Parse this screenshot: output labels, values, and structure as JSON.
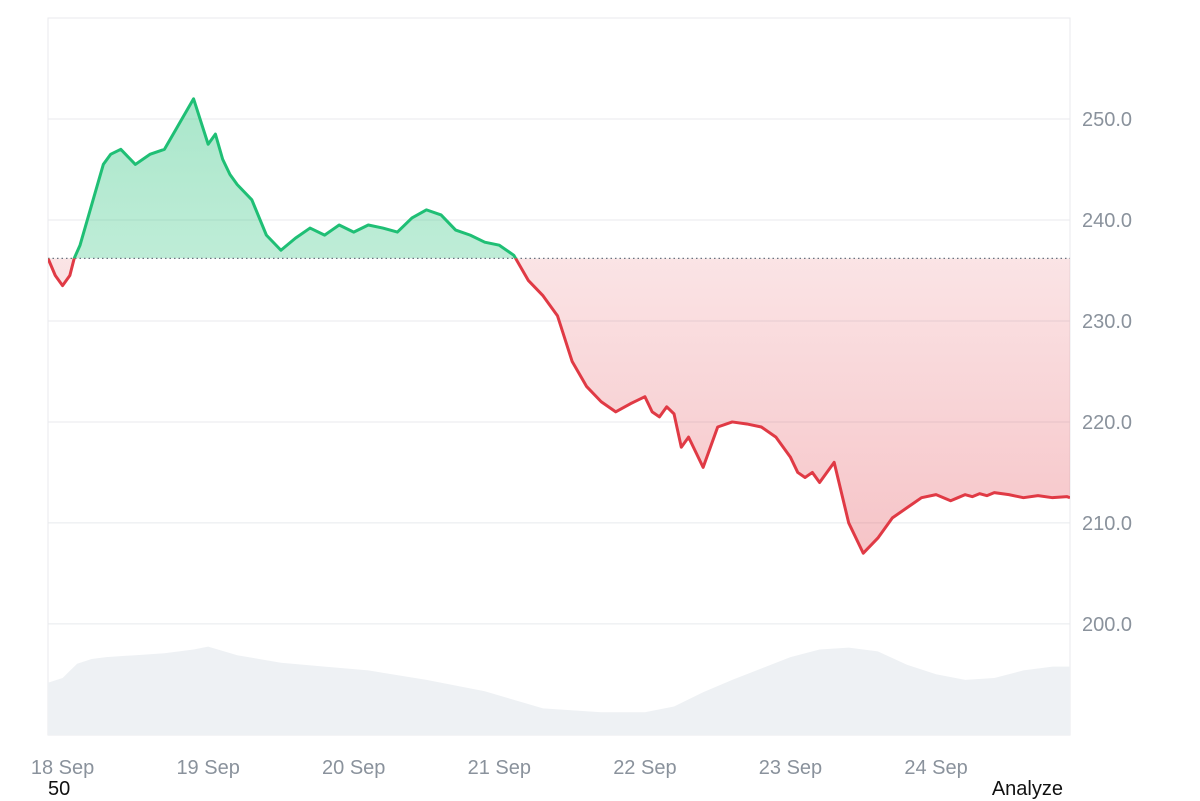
{
  "chart_data": {
    "type": "area",
    "baseline": 236.2,
    "ylim": [
      189,
      260
    ],
    "y_ticks": [
      200.0,
      210.0,
      220.0,
      230.0,
      240.0,
      250.0
    ],
    "y_tick_labels": [
      "200.0",
      "210.0",
      "220.0",
      "230.0",
      "240.0",
      "250.0"
    ],
    "x_tick_labels": [
      "18 Sep",
      "19 Sep",
      "20 Sep",
      "21 Sep",
      "22 Sep",
      "23 Sep",
      "24 Sep"
    ],
    "xlim": [
      -0.1,
      6.92
    ],
    "colors": {
      "up": "#1fbf75",
      "down": "#e03a45",
      "volume": "#eef1f4",
      "grid": "#e8eaed",
      "baseline": "#6b7280"
    },
    "price": {
      "x": [
        -0.1,
        -0.05,
        0.0,
        0.05,
        0.08,
        0.12,
        0.18,
        0.22,
        0.28,
        0.33,
        0.4,
        0.5,
        0.6,
        0.7,
        0.8,
        0.9,
        1.0,
        1.05,
        1.1,
        1.15,
        1.2,
        1.3,
        1.4,
        1.5,
        1.6,
        1.7,
        1.8,
        1.85,
        1.9,
        2.0,
        2.1,
        2.2,
        2.3,
        2.4,
        2.5,
        2.6,
        2.7,
        2.8,
        2.9,
        3.0,
        3.1,
        3.2,
        3.3,
        3.4,
        3.5,
        3.6,
        3.7,
        3.8,
        3.9,
        4.0,
        4.05,
        4.1,
        4.15,
        4.2,
        4.25,
        4.3,
        4.35,
        4.4,
        4.45,
        4.5,
        4.6,
        4.7,
        4.8,
        4.9,
        5.0,
        5.05,
        5.1,
        5.15,
        5.2,
        5.3,
        5.4,
        5.5,
        5.6,
        5.7,
        5.8,
        5.85,
        5.9,
        6.0,
        6.1,
        6.15,
        6.2,
        6.25,
        6.3,
        6.35,
        6.4,
        6.5,
        6.6,
        6.7,
        6.8,
        6.9,
        6.92
      ],
      "y": [
        236.2,
        234.5,
        233.5,
        234.5,
        236.2,
        237.5,
        240.5,
        242.5,
        245.5,
        246.5,
        247.0,
        245.5,
        246.5,
        247.0,
        249.5,
        252.0,
        247.5,
        248.5,
        246.0,
        244.5,
        243.5,
        242.0,
        238.5,
        237.0,
        238.2,
        239.2,
        238.5,
        239.0,
        239.5,
        238.8,
        239.5,
        239.2,
        238.8,
        240.2,
        241.0,
        240.5,
        239.0,
        238.5,
        237.8,
        237.5,
        236.5,
        234.0,
        232.5,
        230.5,
        226.0,
        223.5,
        222.0,
        221.0,
        221.8,
        222.5,
        221.0,
        220.5,
        221.5,
        220.8,
        217.5,
        218.5,
        217.0,
        215.5,
        217.5,
        219.5,
        220.0,
        219.8,
        219.5,
        218.5,
        216.5,
        215.0,
        214.5,
        215.0,
        214.0,
        216.0,
        210.0,
        207.0,
        208.5,
        210.5,
        211.5,
        212.0,
        212.5,
        212.8,
        212.2,
        212.5,
        212.8,
        212.6,
        212.9,
        212.7,
        213.0,
        212.8,
        212.5,
        212.7,
        212.5,
        212.6,
        212.5
      ]
    },
    "volume": {
      "x": [
        -0.1,
        0.0,
        0.1,
        0.2,
        0.3,
        0.5,
        0.7,
        0.9,
        1.0,
        1.2,
        1.5,
        1.8,
        2.1,
        2.5,
        2.9,
        3.3,
        3.7,
        4.0,
        4.2,
        4.4,
        4.6,
        4.8,
        5.0,
        5.2,
        5.4,
        5.6,
        5.8,
        6.0,
        6.2,
        6.4,
        6.6,
        6.8,
        6.92
      ],
      "level": [
        0.55,
        0.6,
        0.75,
        0.8,
        0.82,
        0.84,
        0.86,
        0.9,
        0.93,
        0.84,
        0.76,
        0.72,
        0.68,
        0.58,
        0.46,
        0.28,
        0.24,
        0.24,
        0.3,
        0.45,
        0.58,
        0.7,
        0.82,
        0.9,
        0.92,
        0.88,
        0.74,
        0.64,
        0.58,
        0.6,
        0.68,
        0.72,
        0.72
      ]
    }
  },
  "footer": {
    "left_text": "50",
    "right_label": "Analyze"
  }
}
